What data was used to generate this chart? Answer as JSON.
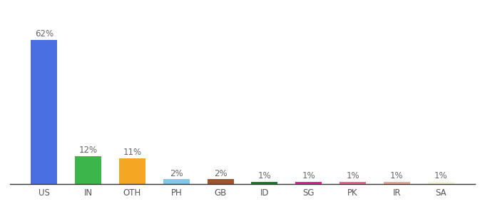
{
  "categories": [
    "US",
    "IN",
    "OTH",
    "PH",
    "GB",
    "ID",
    "SG",
    "PK",
    "IR",
    "SA"
  ],
  "values": [
    62,
    12,
    11,
    2,
    2,
    1,
    1,
    1,
    1,
    1
  ],
  "labels": [
    "62%",
    "12%",
    "11%",
    "2%",
    "2%",
    "1%",
    "1%",
    "1%",
    "1%",
    "1%"
  ],
  "bar_colors": [
    "#4A6FE3",
    "#3CB54A",
    "#F5A623",
    "#82C8E8",
    "#A0522D",
    "#1A7A2A",
    "#E91E8C",
    "#F06292",
    "#E8A898",
    "#F5F5DC"
  ],
  "ylim": [
    0,
    68
  ],
  "background_color": "#ffffff",
  "label_fontsize": 8.5,
  "tick_fontsize": 8.5,
  "label_color": "#666666",
  "tick_color": "#555555",
  "bottom_spine_color": "#333333"
}
